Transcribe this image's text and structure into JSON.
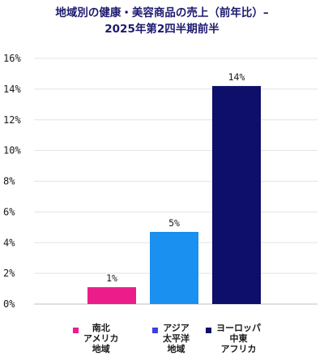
{
  "chart_data": {
    "type": "bar",
    "title_lines": [
      "地域別の健康・美容商品の売上（前年比）–",
      "2025年第2四半期前半"
    ],
    "categories": [
      "南北\nアメリカ\n地域",
      "アジア\n太平洋\n地域",
      "ヨーロッパ\n中東\nアフリカ"
    ],
    "values": [
      1.1,
      4.7,
      14.2
    ],
    "data_labels": [
      "1%",
      "5%",
      "14%"
    ],
    "colors": [
      "#ec1c8a",
      "#1a90f0",
      "#0e0e6b"
    ],
    "legend_colors": [
      "#ec1c8a",
      "#3d3ee6",
      "#0e0e6b"
    ],
    "y_ticks": [
      "0%",
      "2%",
      "4%",
      "6%",
      "8%",
      "10%",
      "12%",
      "14%",
      "16%"
    ],
    "ylim": [
      0,
      16
    ],
    "grid": true,
    "legend_position": "bottom"
  }
}
